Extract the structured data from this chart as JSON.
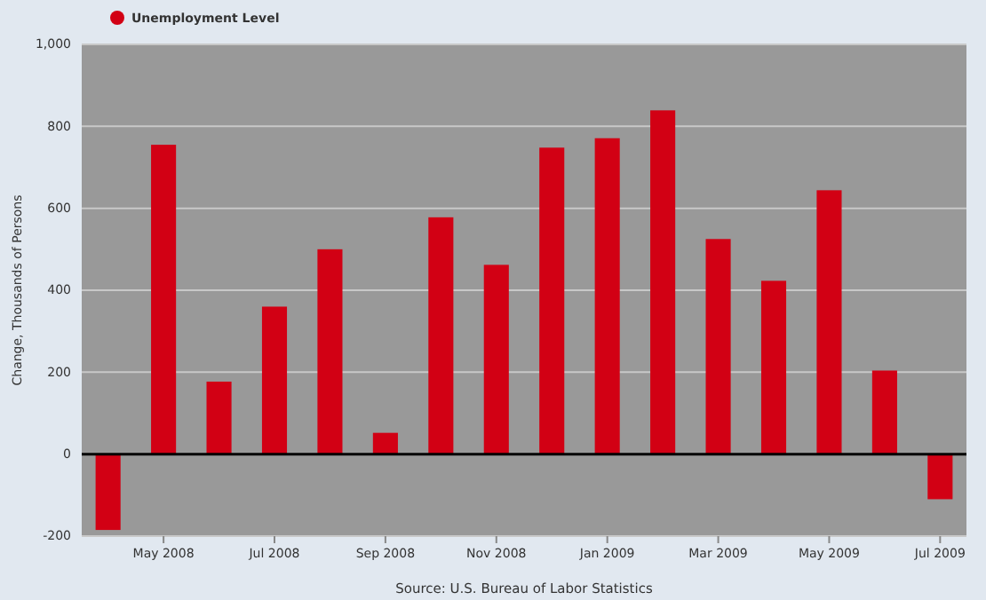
{
  "chart_data": {
    "type": "bar",
    "ylabel": "Change, Thousands of Persons",
    "annotations": [
      "Source: U.S. Bureau of Labor Statistics"
    ],
    "categories": [
      null,
      "May 2008",
      null,
      "Jul 2008",
      null,
      "Sep 2008",
      null,
      "Nov 2008",
      null,
      "Jan 2009",
      null,
      "Mar 2009",
      null,
      "May 2009",
      null,
      "Jul 2009"
    ],
    "series": [
      {
        "name": "Unemployment Level",
        "color": "#d20014",
        "values": [
          -185,
          755,
          177,
          360,
          500,
          52,
          578,
          462,
          748,
          771,
          839,
          525,
          423,
          644,
          204,
          -110
        ]
      }
    ],
    "ylim": [
      -200,
      1000
    ],
    "yticks": [
      -200,
      0,
      200,
      400,
      600,
      800,
      {
        "value": 1000,
        "label": "1,000"
      }
    ],
    "grid": "y",
    "legend": "top left"
  }
}
